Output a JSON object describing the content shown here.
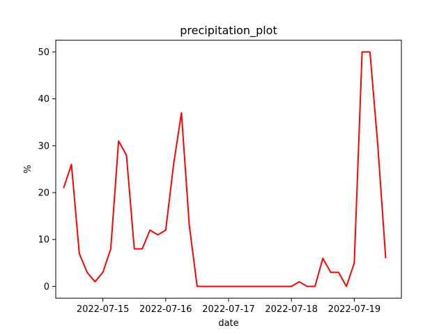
{
  "chart_data": {
    "type": "line",
    "title": "precipitation_plot",
    "xlabel": "date",
    "ylabel": "%",
    "x_tick_labels": [
      "2022-07-15",
      "2022-07-16",
      "2022-07-17",
      "2022-07-18",
      "2022-07-19"
    ],
    "y_ticks": [
      0,
      10,
      20,
      30,
      40,
      50
    ],
    "xlim": [
      "2022-07-14 06:00",
      "2022-07-19 18:00"
    ],
    "ylim": [
      -2.5,
      52.5
    ],
    "grid": false,
    "series": [
      {
        "color": "#ff0000",
        "x": [
          "2022-07-14 09:00",
          "2022-07-14 12:00",
          "2022-07-14 15:00",
          "2022-07-14 18:00",
          "2022-07-14 21:00",
          "2022-07-15 00:00",
          "2022-07-15 03:00",
          "2022-07-15 06:00",
          "2022-07-15 09:00",
          "2022-07-15 12:00",
          "2022-07-15 15:00",
          "2022-07-15 18:00",
          "2022-07-15 21:00",
          "2022-07-16 00:00",
          "2022-07-16 03:00",
          "2022-07-16 06:00",
          "2022-07-16 09:00",
          "2022-07-16 12:00",
          "2022-07-16 15:00",
          "2022-07-16 18:00",
          "2022-07-16 21:00",
          "2022-07-17 00:00",
          "2022-07-17 03:00",
          "2022-07-17 06:00",
          "2022-07-17 09:00",
          "2022-07-17 12:00",
          "2022-07-17 15:00",
          "2022-07-17 18:00",
          "2022-07-17 21:00",
          "2022-07-18 00:00",
          "2022-07-18 03:00",
          "2022-07-18 06:00",
          "2022-07-18 09:00",
          "2022-07-18 12:00",
          "2022-07-18 15:00",
          "2022-07-18 18:00",
          "2022-07-18 21:00",
          "2022-07-19 00:00",
          "2022-07-19 03:00",
          "2022-07-19 06:00",
          "2022-07-19 09:00",
          "2022-07-19 12:00"
        ],
        "values": [
          21,
          26,
          7,
          3,
          1,
          3,
          8,
          31,
          28,
          8,
          8,
          12,
          11,
          12,
          26,
          37,
          13,
          0,
          0,
          0,
          0,
          0,
          0,
          0,
          0,
          0,
          0,
          0,
          0,
          0,
          1,
          0,
          0,
          6,
          3,
          3,
          0,
          5,
          50,
          50,
          30,
          6
        ]
      }
    ]
  }
}
